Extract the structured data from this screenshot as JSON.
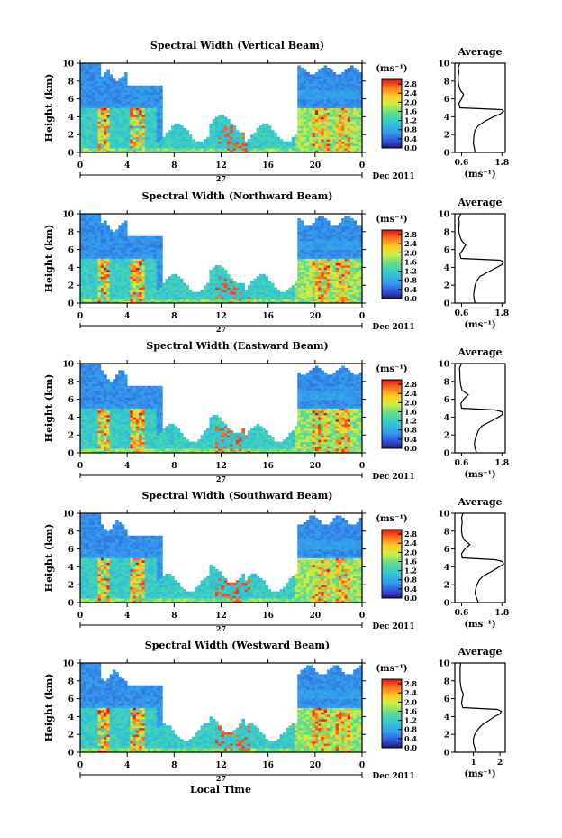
{
  "figure": {
    "date_label": "Dec 2011",
    "day_label": "27",
    "xlabel": "Local Time",
    "colorbar_unit": "(ms⁻¹)",
    "avg_title": "Average",
    "avg_unit": "(ms⁻¹)"
  },
  "chart_data": [
    {
      "type": "heatmap",
      "title": "Spectral Width (Vertical Beam)",
      "ylabel": "Height (km)",
      "xticks": [
        "0",
        "4",
        "8",
        "12",
        "16",
        "20",
        "0"
      ],
      "yticks": [
        "0",
        "2",
        "4",
        "6",
        "8",
        "10"
      ],
      "xlim": [
        0,
        24
      ],
      "ylim": [
        0,
        10
      ],
      "colorbar": {
        "ticks": [
          "0.0",
          "0.4",
          "0.8",
          "1.2",
          "1.6",
          "2.0",
          "2.4",
          "2.8"
        ],
        "range": [
          0,
          3.0
        ]
      },
      "profile": {
        "title": "Average",
        "xticks": [
          "0.6",
          "1.8"
        ],
        "yticks": [
          "0",
          "2",
          "4",
          "6",
          "8",
          "10"
        ],
        "xlim": [
          0.4,
          1.9
        ],
        "height": [
          0,
          0.5,
          1,
          1.5,
          2,
          2.5,
          3,
          3.5,
          4,
          4.3,
          4.6,
          4.8,
          5,
          5.5,
          6,
          6.5,
          7,
          7.5,
          8,
          8.5,
          9,
          9.5,
          10
        ],
        "value": [
          1.0,
          0.98,
          0.95,
          0.96,
          0.97,
          1.0,
          1.1,
          1.3,
          1.55,
          1.75,
          1.85,
          1.8,
          0.55,
          0.52,
          0.6,
          0.66,
          0.56,
          0.52,
          0.5,
          0.5,
          0.52,
          0.5,
          0.55
        ]
      }
    },
    {
      "type": "heatmap",
      "title": "Spectral Width (Northward Beam)",
      "ylabel": "Height (km)",
      "xticks": [
        "0",
        "4",
        "8",
        "12",
        "16",
        "20",
        "0"
      ],
      "yticks": [
        "0",
        "2",
        "4",
        "6",
        "8",
        "10"
      ],
      "xlim": [
        0,
        24
      ],
      "ylim": [
        0,
        10
      ],
      "colorbar": {
        "ticks": [
          "0.0",
          "0.4",
          "0.8",
          "1.2",
          "1.6",
          "2.0",
          "2.4",
          "2.8"
        ],
        "range": [
          0,
          3.0
        ]
      },
      "profile": {
        "title": "Average",
        "xticks": [
          "0.6",
          "1.8"
        ],
        "yticks": [
          "0",
          "2",
          "4",
          "6",
          "8",
          "10"
        ],
        "xlim": [
          0.4,
          1.9
        ],
        "height": [
          0,
          0.5,
          1,
          1.5,
          2,
          2.5,
          3,
          3.5,
          4,
          4.3,
          4.6,
          4.8,
          5,
          5.5,
          6,
          6.5,
          7,
          7.5,
          8,
          8.5,
          9,
          9.5,
          10
        ],
        "value": [
          1.0,
          0.97,
          0.96,
          0.98,
          1.0,
          1.05,
          1.15,
          1.4,
          1.65,
          1.8,
          1.85,
          1.75,
          0.58,
          0.55,
          0.64,
          0.72,
          0.6,
          0.55,
          0.52,
          0.52,
          0.53,
          0.52,
          0.58
        ]
      }
    },
    {
      "type": "heatmap",
      "title": "Spectral Width (Eastward Beam)",
      "ylabel": "Height (km)",
      "xticks": [
        "0",
        "4",
        "8",
        "12",
        "16",
        "20",
        "0"
      ],
      "yticks": [
        "0",
        "2",
        "4",
        "6",
        "8",
        "10"
      ],
      "xlim": [
        0,
        24
      ],
      "ylim": [
        0,
        10
      ],
      "colorbar": {
        "ticks": [
          "0.0",
          "0.4",
          "0.8",
          "1.2",
          "1.6",
          "2.0",
          "2.4",
          "2.8"
        ],
        "range": [
          0,
          3.0
        ]
      },
      "profile": {
        "title": "Average",
        "xticks": [
          "0.6",
          "1.8"
        ],
        "yticks": [
          "0",
          "2",
          "4",
          "6",
          "8",
          "10"
        ],
        "xlim": [
          0.4,
          1.9
        ],
        "height": [
          0,
          0.5,
          1,
          1.5,
          2,
          2.5,
          3,
          3.5,
          4,
          4.3,
          4.6,
          4.8,
          5,
          5.5,
          6,
          6.5,
          7,
          7.5,
          8,
          8.5,
          9,
          9.5,
          10
        ],
        "value": [
          1.05,
          1.0,
          0.98,
          1.0,
          1.05,
          1.1,
          1.2,
          1.45,
          1.7,
          1.82,
          1.8,
          1.6,
          0.6,
          0.58,
          0.66,
          0.8,
          0.62,
          0.58,
          0.56,
          0.55,
          0.55,
          0.54,
          0.6
        ]
      }
    },
    {
      "type": "heatmap",
      "title": "Spectral Width (Southward Beam)",
      "ylabel": "Height (km)",
      "xticks": [
        "0",
        "4",
        "8",
        "12",
        "16",
        "20",
        "0"
      ],
      "yticks": [
        "0",
        "2",
        "4",
        "6",
        "8",
        "10"
      ],
      "xlim": [
        0,
        24
      ],
      "ylim": [
        0,
        10
      ],
      "colorbar": {
        "ticks": [
          "0.0",
          "0.4",
          "0.8",
          "1.2",
          "1.6",
          "2.0",
          "2.4",
          "2.8"
        ],
        "range": [
          0,
          3.0
        ]
      },
      "profile": {
        "title": "Average",
        "xticks": [
          "0.6",
          "1.8"
        ],
        "yticks": [
          "0",
          "2",
          "4",
          "6",
          "8",
          "10"
        ],
        "xlim": [
          0.4,
          1.9
        ],
        "height": [
          0,
          0.5,
          1,
          1.5,
          2,
          2.5,
          3,
          3.5,
          4,
          4.3,
          4.6,
          4.8,
          5,
          5.5,
          6,
          6.5,
          7,
          7.5,
          8,
          8.5,
          9,
          9.5,
          10
        ],
        "value": [
          1.1,
          1.05,
          1.0,
          1.02,
          1.06,
          1.12,
          1.25,
          1.5,
          1.72,
          1.85,
          1.82,
          1.6,
          0.62,
          0.6,
          0.7,
          0.85,
          0.68,
          0.62,
          0.6,
          0.6,
          0.62,
          0.6,
          0.64
        ]
      }
    },
    {
      "type": "heatmap",
      "title": "Spectral Width (Westward Beam)",
      "ylabel": "Height (km)",
      "xticks": [
        "0",
        "4",
        "8",
        "12",
        "16",
        "20",
        "0"
      ],
      "yticks": [
        "0",
        "2",
        "4",
        "6",
        "8",
        "10"
      ],
      "xlim": [
        0,
        24
      ],
      "ylim": [
        0,
        10
      ],
      "colorbar": {
        "ticks": [
          "0.0",
          "0.4",
          "0.8",
          "1.2",
          "1.6",
          "2.0",
          "2.4",
          "2.8"
        ],
        "range": [
          0,
          3.0
        ]
      },
      "profile": {
        "title": "Average",
        "xticks": [
          "1",
          "2"
        ],
        "yticks": [
          "0",
          "2",
          "4",
          "6",
          "8",
          "10"
        ],
        "xlim": [
          0.3,
          2.2
        ],
        "height": [
          0,
          0.5,
          1,
          1.5,
          2,
          2.5,
          3,
          3.5,
          4,
          4.3,
          4.6,
          4.8,
          5,
          5.5,
          6,
          6.5,
          7,
          7.5,
          8,
          8.5,
          9,
          9.5,
          10
        ],
        "value": [
          1.1,
          1.05,
          1.0,
          1.0,
          1.05,
          1.15,
          1.3,
          1.55,
          1.8,
          2.0,
          2.05,
          1.9,
          0.6,
          0.55,
          0.58,
          0.62,
          0.55,
          0.52,
          0.5,
          0.5,
          0.5,
          0.5,
          0.52
        ]
      }
    }
  ]
}
